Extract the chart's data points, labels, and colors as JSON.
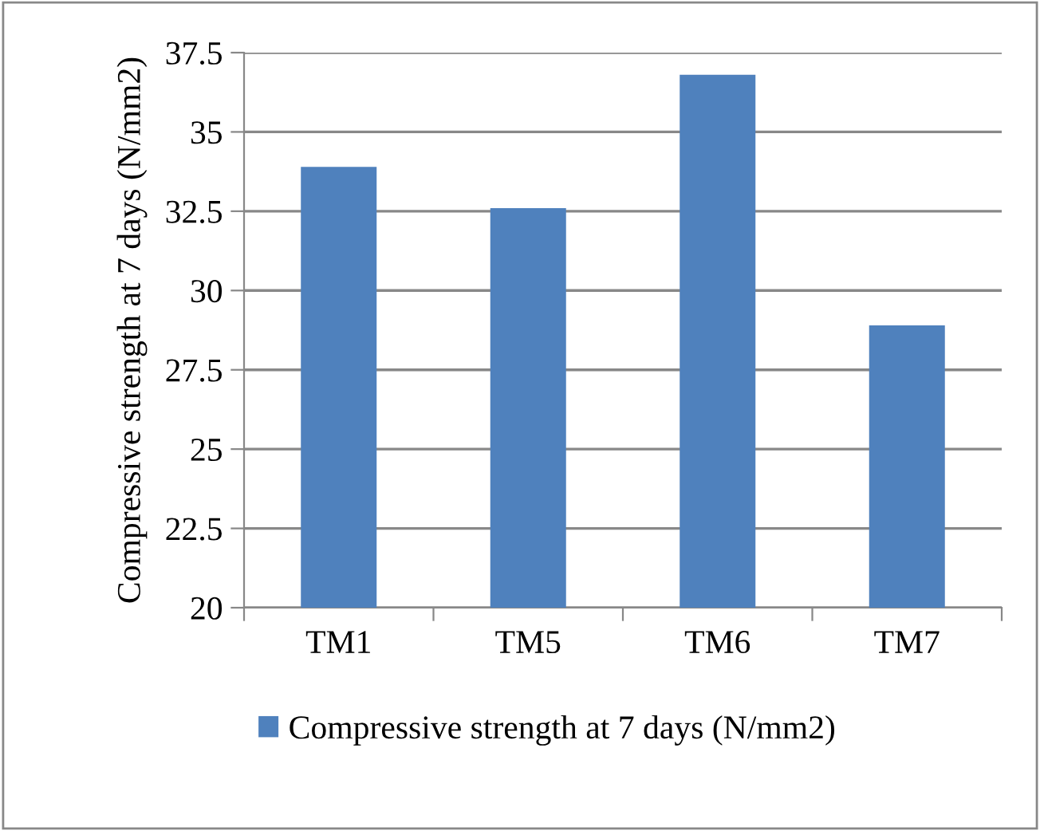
{
  "chart_data": {
    "type": "bar",
    "ylabel": "Compressive strength at 7 days (N/mm2)",
    "categories": [
      "TM1",
      "TM5",
      "TM6",
      "TM7"
    ],
    "series": [
      {
        "name": "Compressive strength at 7 days (N/mm2)",
        "color": "#4f81bd",
        "values": [
          33.9,
          32.6,
          36.8,
          28.9
        ]
      }
    ],
    "ylim": [
      20,
      37.5
    ],
    "yticks": [
      20,
      22.5,
      25,
      27.5,
      30,
      32.5,
      35,
      37.5
    ],
    "grid": "y",
    "legend": "bottom"
  }
}
